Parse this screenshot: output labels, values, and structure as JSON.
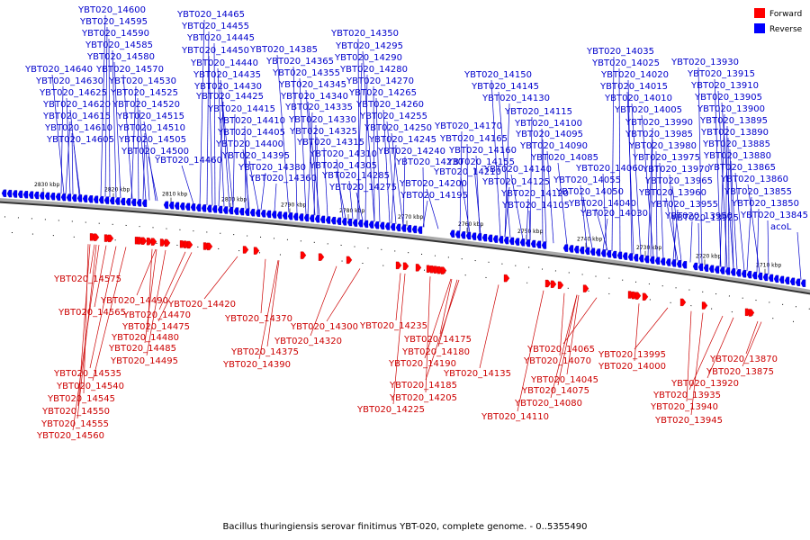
{
  "legend": {
    "forward_label": "Forward",
    "reverse_label": "Reverse",
    "forward_color": "#ff0000",
    "reverse_color": "#0000ff"
  },
  "caption": "Bacillus thuringiensis serovar finitimus YBT-020, complete genome. - 0..5355490",
  "ticks": [
    "2830 kbp",
    "2820 kbp",
    "2810 kbp",
    "2800 kbp",
    "2790 kbp",
    "2780 kbp",
    "2770 kbp",
    "2760 kbp",
    "2750 kbp",
    "2740 kbp",
    "2730 kbp",
    "2720 kbp",
    "2710 kbp"
  ],
  "reverse_labels": [
    "YBT020_14600",
    "YBT020_14595",
    "YBT020_14590",
    "YBT020_14585",
    "YBT020_14580",
    "YBT020_14570",
    "YBT020_14640",
    "YBT020_14530",
    "YBT020_14630",
    "YBT020_14525",
    "YBT020_14625",
    "YBT020_14520",
    "YBT020_14620",
    "YBT020_14515",
    "YBT020_14615",
    "YBT020_14510",
    "YBT020_14610",
    "YBT020_14505",
    "YBT020_14605",
    "YBT020_14500",
    "YBT020_14460",
    "YBT020_14465",
    "YBT020_14455",
    "YBT020_14445",
    "YBT020_14450",
    "YBT020_14440",
    "YBT020_14435",
    "YBT020_14430",
    "YBT020_14425",
    "YBT020_14415",
    "YBT020_14410",
    "YBT020_14405",
    "YBT020_14400",
    "YBT020_14395",
    "YBT020_14385",
    "YBT020_14380",
    "YBT020_14360",
    "YBT020_14350",
    "YBT020_14365",
    "YBT020_14355",
    "YBT020_14345",
    "YBT020_14340",
    "YBT020_14335",
    "YBT020_14330",
    "YBT020_14325",
    "YBT020_14315",
    "YBT020_14310",
    "YBT020_14305",
    "YBT020_14295",
    "YBT020_14290",
    "YBT020_14280",
    "YBT020_14270",
    "YBT020_14265",
    "YBT020_14260",
    "YBT020_14255",
    "YBT020_14250",
    "YBT020_14245",
    "YBT020_14240",
    "YBT020_14230",
    "YBT020_14285",
    "YBT020_14275",
    "YBT020_14210",
    "YBT020_14200",
    "YBT020_14195",
    "YBT020_14170",
    "YBT020_14165",
    "YBT020_14160",
    "YBT020_14155",
    "YBT020_14150",
    "YBT020_14145",
    "YBT020_14130",
    "YBT020_14115",
    "YBT020_14100",
    "YBT020_14095",
    "YBT020_14090",
    "YBT020_14085",
    "YBT020_14140",
    "YBT020_14125",
    "YBT020_14120",
    "YBT020_14105",
    "YBT020_14060",
    "YBT020_14055",
    "YBT020_14050",
    "YBT020_14040",
    "YBT020_14030",
    "YBT020_14035",
    "YBT020_14025",
    "YBT020_14020",
    "YBT020_14015",
    "YBT020_14010",
    "YBT020_14005",
    "YBT020_13990",
    "YBT020_13985",
    "YBT020_13980",
    "YBT020_13975",
    "YBT020_13970",
    "YBT020_13965",
    "YBT020_13960",
    "YBT020_13955",
    "YBT020_13950",
    "YBT020_13925",
    "YBT020_13930",
    "YBT020_13915",
    "YBT020_13910",
    "YBT020_13905",
    "YBT020_13900",
    "YBT020_13895",
    "YBT020_13890",
    "YBT020_13885",
    "YBT020_13880",
    "YBT020_13865",
    "YBT020_13860",
    "YBT020_13855",
    "YBT020_13850",
    "YBT020_13845",
    "acoL"
  ],
  "forward_labels": [
    "YBT020_14575",
    "YBT020_14565",
    "YBT020_14490",
    "YBT020_14470",
    "YBT020_14475",
    "YBT020_14480",
    "YBT020_14485",
    "YBT020_14495",
    "YBT020_14535",
    "YBT020_14540",
    "YBT020_14545",
    "YBT020_14550",
    "YBT020_14555",
    "YBT020_14560",
    "YBT020_14420",
    "YBT020_14370",
    "YBT020_14375",
    "YBT020_14390",
    "YBT020_14320",
    "YBT020_14300",
    "YBT020_14235",
    "YBT020_14175",
    "YBT020_14180",
    "YBT020_14190",
    "YBT020_14185",
    "YBT020_14205",
    "YBT020_14225",
    "YBT020_14135",
    "YBT020_14110",
    "YBT020_14065",
    "YBT020_14070",
    "YBT020_14045",
    "YBT020_14075",
    "YBT020_14080",
    "YBT020_13995",
    "YBT020_14000",
    "YBT020_13870",
    "YBT020_13875",
    "YBT020_13920",
    "YBT020_13935",
    "YBT020_13940",
    "YBT020_13945"
  ]
}
